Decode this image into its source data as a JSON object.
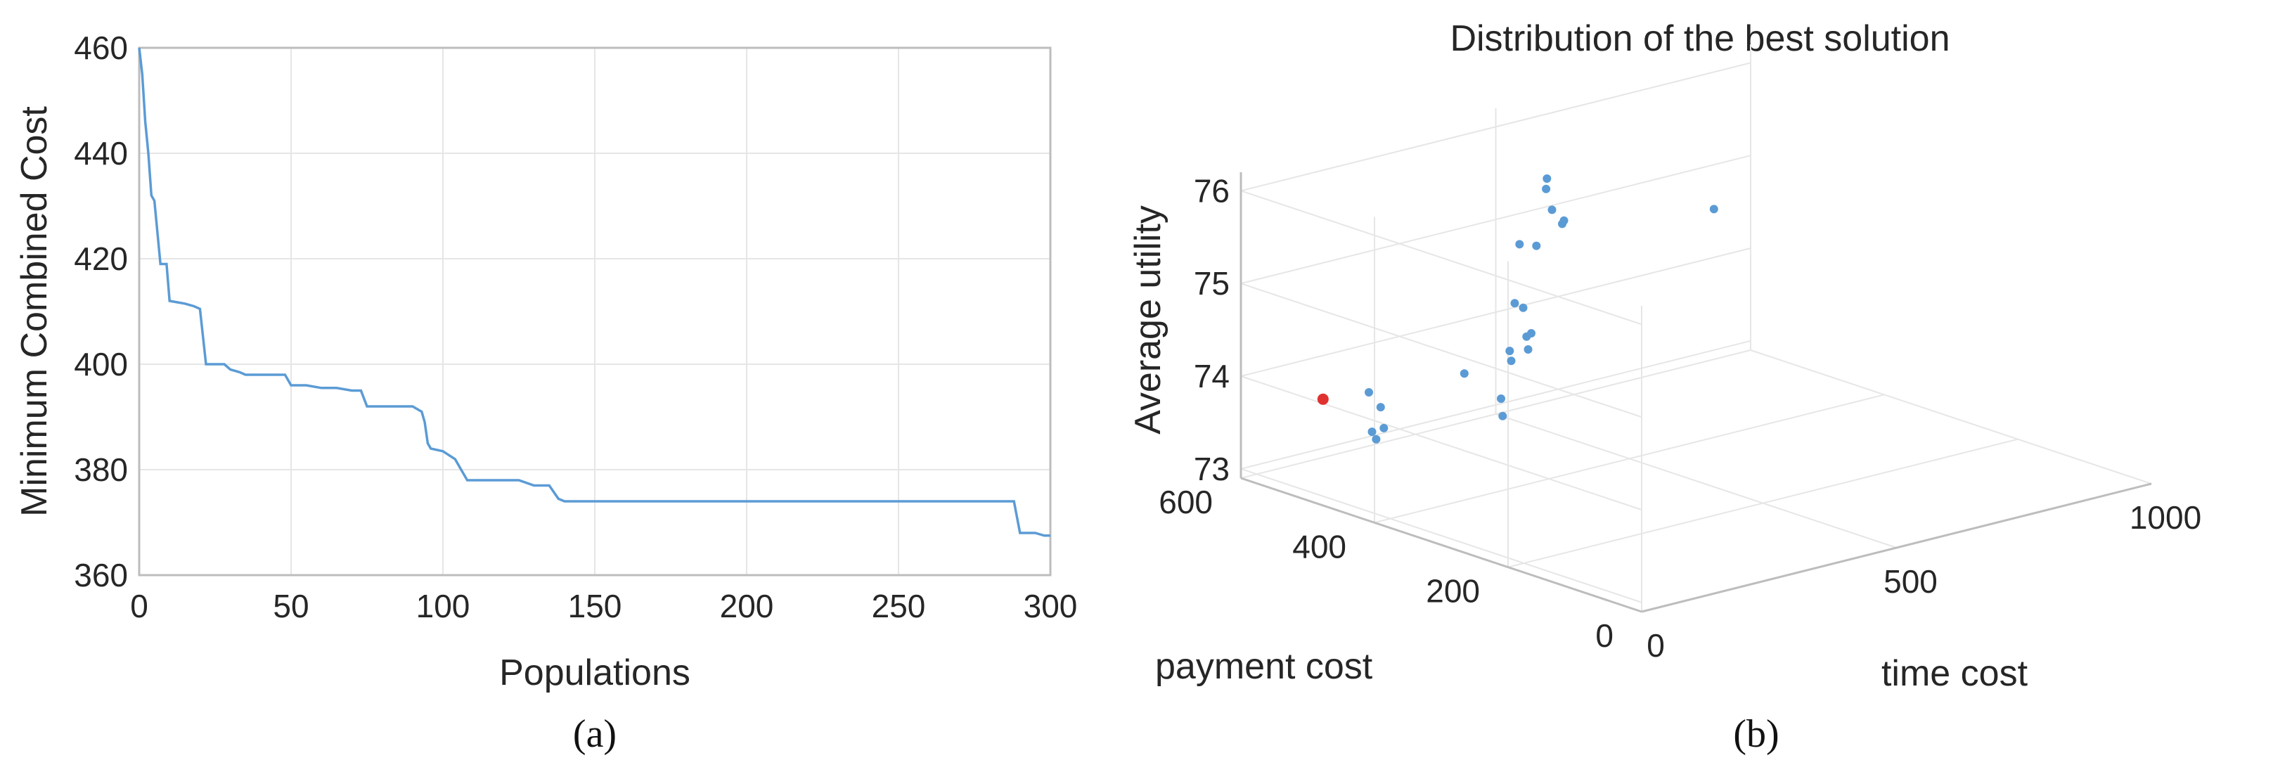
{
  "chart_data": [
    {
      "type": "line",
      "caption": "(a)",
      "title": "",
      "xlabel": "Populations",
      "ylabel": "Minimum Combined Cost",
      "xlim": [
        0,
        300
      ],
      "ylim": [
        360,
        460
      ],
      "xticks": [
        0,
        50,
        100,
        150,
        200,
        250,
        300
      ],
      "yticks": [
        360,
        380,
        400,
        420,
        440,
        460
      ],
      "grid": true,
      "color": "#5b9bd5",
      "series": [
        {
          "x": [
            0,
            1,
            2,
            3,
            4,
            5,
            6,
            7,
            9,
            10,
            15,
            18,
            20,
            22,
            25,
            28,
            30,
            33,
            35,
            40,
            48,
            50,
            55,
            60,
            65,
            70,
            73,
            75,
            80,
            85,
            90,
            93,
            94,
            95,
            96,
            100,
            104,
            106,
            108,
            110,
            115,
            120,
            125,
            130,
            135,
            138,
            140,
            145,
            150,
            200,
            250,
            288,
            290,
            295,
            298,
            300
          ],
          "y": [
            460,
            455,
            446,
            440,
            432,
            431,
            425,
            419,
            419,
            412,
            411.5,
            411,
            410.5,
            400,
            400,
            400,
            399,
            398.5,
            398,
            398,
            398,
            396,
            396,
            395.5,
            395.5,
            395,
            395,
            392,
            392,
            392,
            392,
            391,
            389,
            385,
            384,
            383.5,
            382,
            380,
            378,
            378,
            378,
            378,
            378,
            377,
            377,
            374.5,
            374,
            374,
            374,
            374,
            374,
            374,
            368,
            368,
            367.5,
            367.5
          ]
        }
      ]
    },
    {
      "type": "scatter3d",
      "caption": "(b)",
      "title": "Distribution of the best solution",
      "xlabel": "time cost",
      "ylabel": "payment cost",
      "zlabel": "Average utility",
      "xlim": [
        0,
        1000
      ],
      "ylim": [
        0,
        600
      ],
      "zlim": [
        72.9,
        76.2
      ],
      "xticks": [
        0,
        500,
        1000
      ],
      "yticks": [
        0,
        200,
        400,
        600
      ],
      "zticks": [
        73,
        74,
        75,
        76
      ],
      "grid": true,
      "series": [
        {
          "name": "",
          "color": "#5b9bd5",
          "points": [
            {
              "x": 430,
              "y": 470,
              "z": 75.85
            },
            {
              "x": 435,
              "y": 475,
              "z": 75.72
            },
            {
              "x": 440,
              "y": 470,
              "z": 75.5
            },
            {
              "x": 350,
              "y": 450,
              "z": 75.3
            },
            {
              "x": 370,
              "y": 440,
              "z": 75.28
            },
            {
              "x": 460,
              "y": 470,
              "z": 75.32
            },
            {
              "x": 470,
              "y": 475,
              "z": 75.33
            },
            {
              "x": 380,
              "y": 480,
              "z": 74.55
            },
            {
              "x": 390,
              "y": 475,
              "z": 74.5
            },
            {
              "x": 360,
              "y": 440,
              "z": 74.35
            },
            {
              "x": 390,
              "y": 470,
              "z": 74.2
            },
            {
              "x": 380,
              "y": 460,
              "z": 74.1
            },
            {
              "x": 360,
              "y": 470,
              "z": 73.98
            },
            {
              "x": 370,
              "y": 480,
              "z": 74.05
            },
            {
              "x": 340,
              "y": 470,
              "z": 73.6
            },
            {
              "x": 330,
              "y": 460,
              "z": 73.45
            },
            {
              "x": 150,
              "y": 380,
              "z": 74.35
            },
            {
              "x": 810,
              "y": 510,
              "z": 74.9
            },
            {
              "x": 120,
              "y": 500,
              "z": 73.9
            },
            {
              "x": 130,
              "y": 490,
              "z": 73.75
            },
            {
              "x": 110,
              "y": 470,
              "z": 73.6
            },
            {
              "x": 100,
              "y": 480,
              "z": 73.55
            },
            {
              "x": 95,
              "y": 470,
              "z": 73.5
            }
          ]
        },
        {
          "name": "",
          "color": "#e03131",
          "points": [
            {
              "x": 30,
              "y": 500,
              "z": 73.95
            }
          ]
        }
      ]
    }
  ]
}
